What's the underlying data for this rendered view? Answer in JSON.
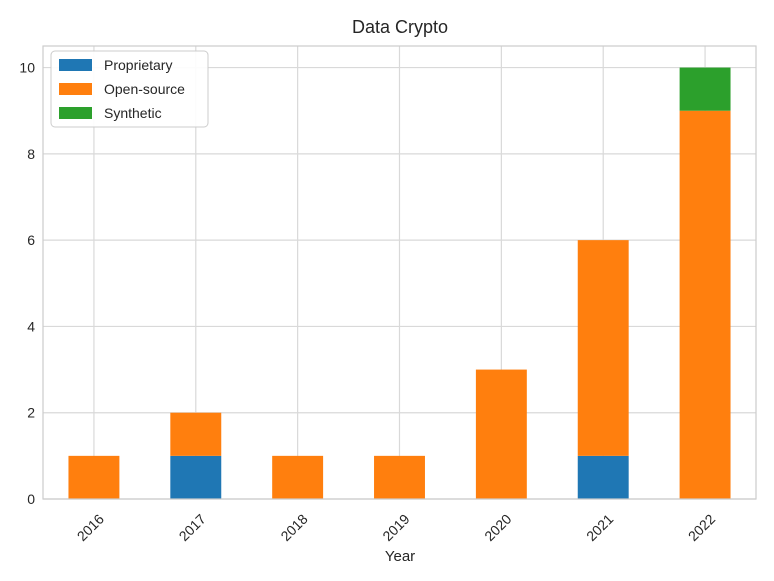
{
  "chart_data": {
    "type": "bar",
    "stacked": true,
    "title": "Data Crypto",
    "xlabel": "Year",
    "ylabel": "",
    "categories": [
      "2016",
      "2017",
      "2018",
      "2019",
      "2020",
      "2021",
      "2022"
    ],
    "series": [
      {
        "name": "Proprietary",
        "color": "#1f77b4",
        "values": [
          0,
          1,
          0,
          0,
          0,
          1,
          0
        ]
      },
      {
        "name": "Open-source",
        "color": "#ff7f0e",
        "values": [
          1,
          1,
          1,
          1,
          3,
          5,
          9
        ]
      },
      {
        "name": "Synthetic",
        "color": "#2ca02c",
        "values": [
          0,
          0,
          0,
          0,
          0,
          0,
          1
        ]
      }
    ],
    "ylim": [
      0,
      10.5
    ],
    "yticks": [
      "0",
      "2",
      "4",
      "6",
      "8",
      "10"
    ],
    "grid": true,
    "legend_position": "top-left"
  }
}
